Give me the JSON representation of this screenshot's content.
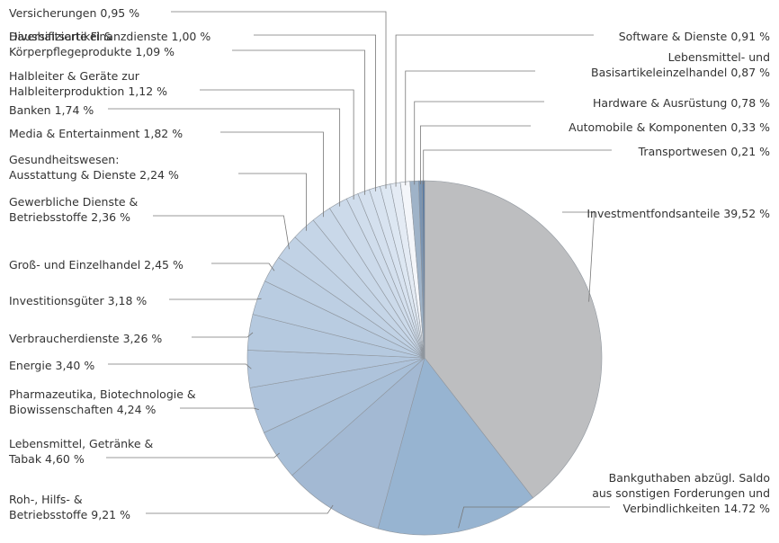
{
  "chart_data": {
    "type": "pie",
    "categories": [
      "Investmentfondsanteile",
      "Bankguthaben abzügl. Saldo\naus sonstigen Forderungen und\nVerbindlichkeiten",
      "Roh-, Hilfs- &\nBetriebsstoffe",
      "Lebensmittel, Getränke &\nTabak",
      "Pharmazeutika, Biotechnologie &\nBiowissenschaften",
      "Energie",
      "Verbraucherdienste",
      "Investitionsgüter",
      "Groß- und Einzelhandel",
      "Gewerbliche Dienste &\nBetriebsstoffe",
      "Gesundheitswesen:\nAusstattung & Dienste",
      "Media & Entertainment",
      "Banken",
      "Halbleiter & Geräte zur\nHalbleiterproduktion",
      "Haushaltsartikel &\nKörperpflegeprodukte",
      "Diversifizierte Finanzdienste",
      "Versicherungen",
      "Software & Dienste",
      "Lebensmittel- und\nBasisartikeleinzelhandel",
      "Hardware & Ausrüstung",
      "Automobile & Komponenten",
      "Transportwesen"
    ],
    "values": [
      39.52,
      14.72,
      9.21,
      4.6,
      4.24,
      3.4,
      3.26,
      3.18,
      2.45,
      2.36,
      2.24,
      1.82,
      1.74,
      1.12,
      1.09,
      1.0,
      0.95,
      0.91,
      0.87,
      0.78,
      0.33,
      0.21
    ],
    "value_labels": [
      "39,52 %",
      "14.72 %",
      "9,21 %",
      "4,60 %",
      "4,24 %",
      "3,40 %",
      "3,26 %",
      "3,18 %",
      "2,45 %",
      "2,36 %",
      "2,24 %",
      "1,82 %",
      "1,74 %",
      "1,12 %",
      "1,09 %",
      "1,00 %",
      "0,95 %",
      "0,91 %",
      "0,87 %",
      "0,78 %",
      "0,33 %",
      "0,21 %"
    ],
    "colors": [
      "#bdbec0",
      "#97b4d1",
      "#a3b9d3",
      "#a8bfd8",
      "#aec3db",
      "#b2c6dd",
      "#b5c9df",
      "#b9cce1",
      "#bdcfe3",
      "#c1d2e5",
      "#c5d5e7",
      "#c9d8e9",
      "#ccdaea",
      "#d0ddec",
      "#d4e0ee",
      "#d8e3f0",
      "#dde7f2",
      "#e4ebf4",
      "#f4f6fa",
      "#9fb3c8",
      "#7a94b2",
      "#5a7aa0"
    ]
  }
}
